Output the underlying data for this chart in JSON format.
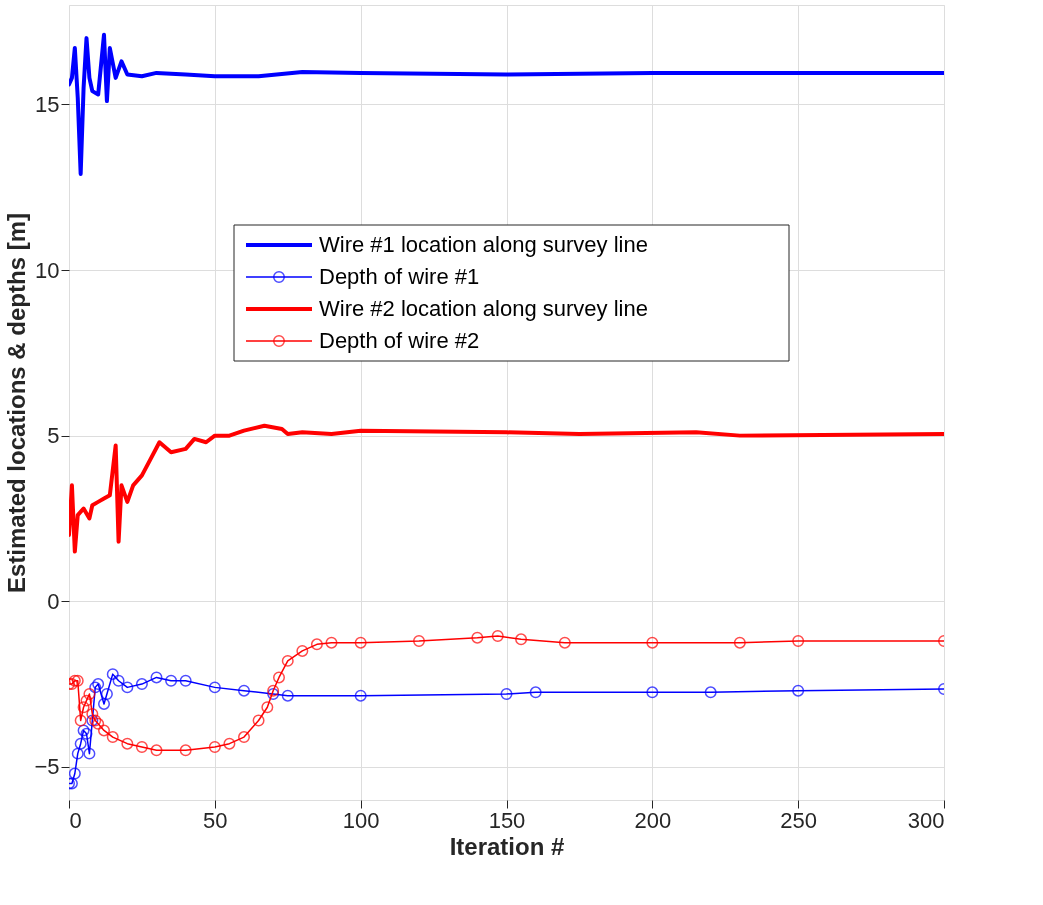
{
  "chart_data": {
    "type": "line",
    "xlabel": "Iteration #",
    "ylabel": "Estimated locations & depths [m]",
    "xlim": [
      0,
      300
    ],
    "xticks": [
      0,
      50,
      100,
      150,
      200,
      250,
      300
    ],
    "ylim": [
      -6,
      18
    ],
    "yticks": [
      -5,
      0,
      5,
      10,
      15
    ],
    "grid": true,
    "legend": "top",
    "line_style": "solid",
    "series": [
      {
        "name": "Wire #1 location along survey line",
        "color": "#0000ff",
        "marker": "none",
        "x": [
          0,
          1,
          2,
          3,
          4,
          5,
          6,
          7,
          8,
          10,
          12,
          13,
          14,
          16,
          18,
          20,
          25,
          30,
          40,
          50,
          65,
          80,
          100,
          150,
          200,
          250,
          300
        ],
        "values": [
          15.6,
          15.8,
          16.7,
          15.2,
          12.9,
          15.5,
          17.0,
          15.8,
          15.4,
          15.3,
          17.1,
          15.1,
          16.7,
          15.8,
          16.3,
          15.9,
          15.85,
          15.95,
          15.9,
          15.85,
          15.85,
          15.98,
          15.95,
          15.9,
          15.95,
          15.95,
          15.95
        ]
      },
      {
        "name": "Depth of wire #1",
        "color": "#0000ff",
        "marker": "circle",
        "x": [
          0,
          1,
          2,
          3,
          4,
          5,
          6,
          7,
          8,
          9,
          10,
          12,
          13,
          15,
          17,
          20,
          25,
          30,
          35,
          40,
          50,
          60,
          70,
          75,
          100,
          150,
          160,
          200,
          220,
          250,
          300
        ],
        "values": [
          -5.5,
          -5.5,
          -5.2,
          -4.6,
          -4.3,
          -3.9,
          -4.0,
          -4.6,
          -3.6,
          -2.6,
          -2.5,
          -3.1,
          -2.8,
          -2.2,
          -2.4,
          -2.6,
          -2.5,
          -2.3,
          -2.4,
          -2.4,
          -2.6,
          -2.7,
          -2.8,
          -2.85,
          -2.85,
          -2.8,
          -2.75,
          -2.75,
          -2.75,
          -2.7,
          -2.65
        ]
      },
      {
        "name": "Wire #2 location along survey line",
        "color": "#ff0000",
        "marker": "none",
        "x": [
          0,
          1,
          2,
          3,
          5,
          7,
          8,
          10,
          12,
          14,
          16,
          17,
          18,
          20,
          22,
          25,
          28,
          31,
          35,
          40,
          43,
          47,
          50,
          55,
          60,
          67,
          73,
          75,
          80,
          90,
          100,
          150,
          175,
          215,
          230,
          300
        ],
        "values": [
          2.0,
          3.5,
          1.5,
          2.6,
          2.8,
          2.5,
          2.9,
          3.0,
          3.1,
          3.2,
          4.7,
          1.8,
          3.5,
          3.0,
          3.5,
          3.8,
          4.3,
          4.8,
          4.5,
          4.6,
          4.9,
          4.8,
          5.0,
          5.0,
          5.15,
          5.3,
          5.2,
          5.05,
          5.1,
          5.05,
          5.15,
          5.1,
          5.05,
          5.1,
          5.0,
          5.05
        ]
      },
      {
        "name": "Depth of wire #2",
        "color": "#ff0000",
        "marker": "circle",
        "x": [
          0,
          1,
          2,
          3,
          4,
          5,
          6,
          7,
          8,
          9,
          10,
          12,
          15,
          20,
          25,
          30,
          40,
          50,
          55,
          60,
          65,
          68,
          70,
          72,
          75,
          80,
          85,
          90,
          100,
          120,
          140,
          147,
          155,
          170,
          200,
          230,
          250,
          300
        ],
        "values": [
          -2.5,
          -2.5,
          -2.4,
          -2.4,
          -3.6,
          -3.2,
          -3.0,
          -2.8,
          -3.4,
          -3.6,
          -3.7,
          -3.9,
          -4.1,
          -4.3,
          -4.4,
          -4.5,
          -4.5,
          -4.4,
          -4.3,
          -4.1,
          -3.6,
          -3.2,
          -2.7,
          -2.3,
          -1.8,
          -1.5,
          -1.3,
          -1.25,
          -1.25,
          -1.2,
          -1.1,
          -1.05,
          -1.15,
          -1.25,
          -1.25,
          -1.25,
          -1.2,
          -1.2
        ]
      }
    ]
  }
}
